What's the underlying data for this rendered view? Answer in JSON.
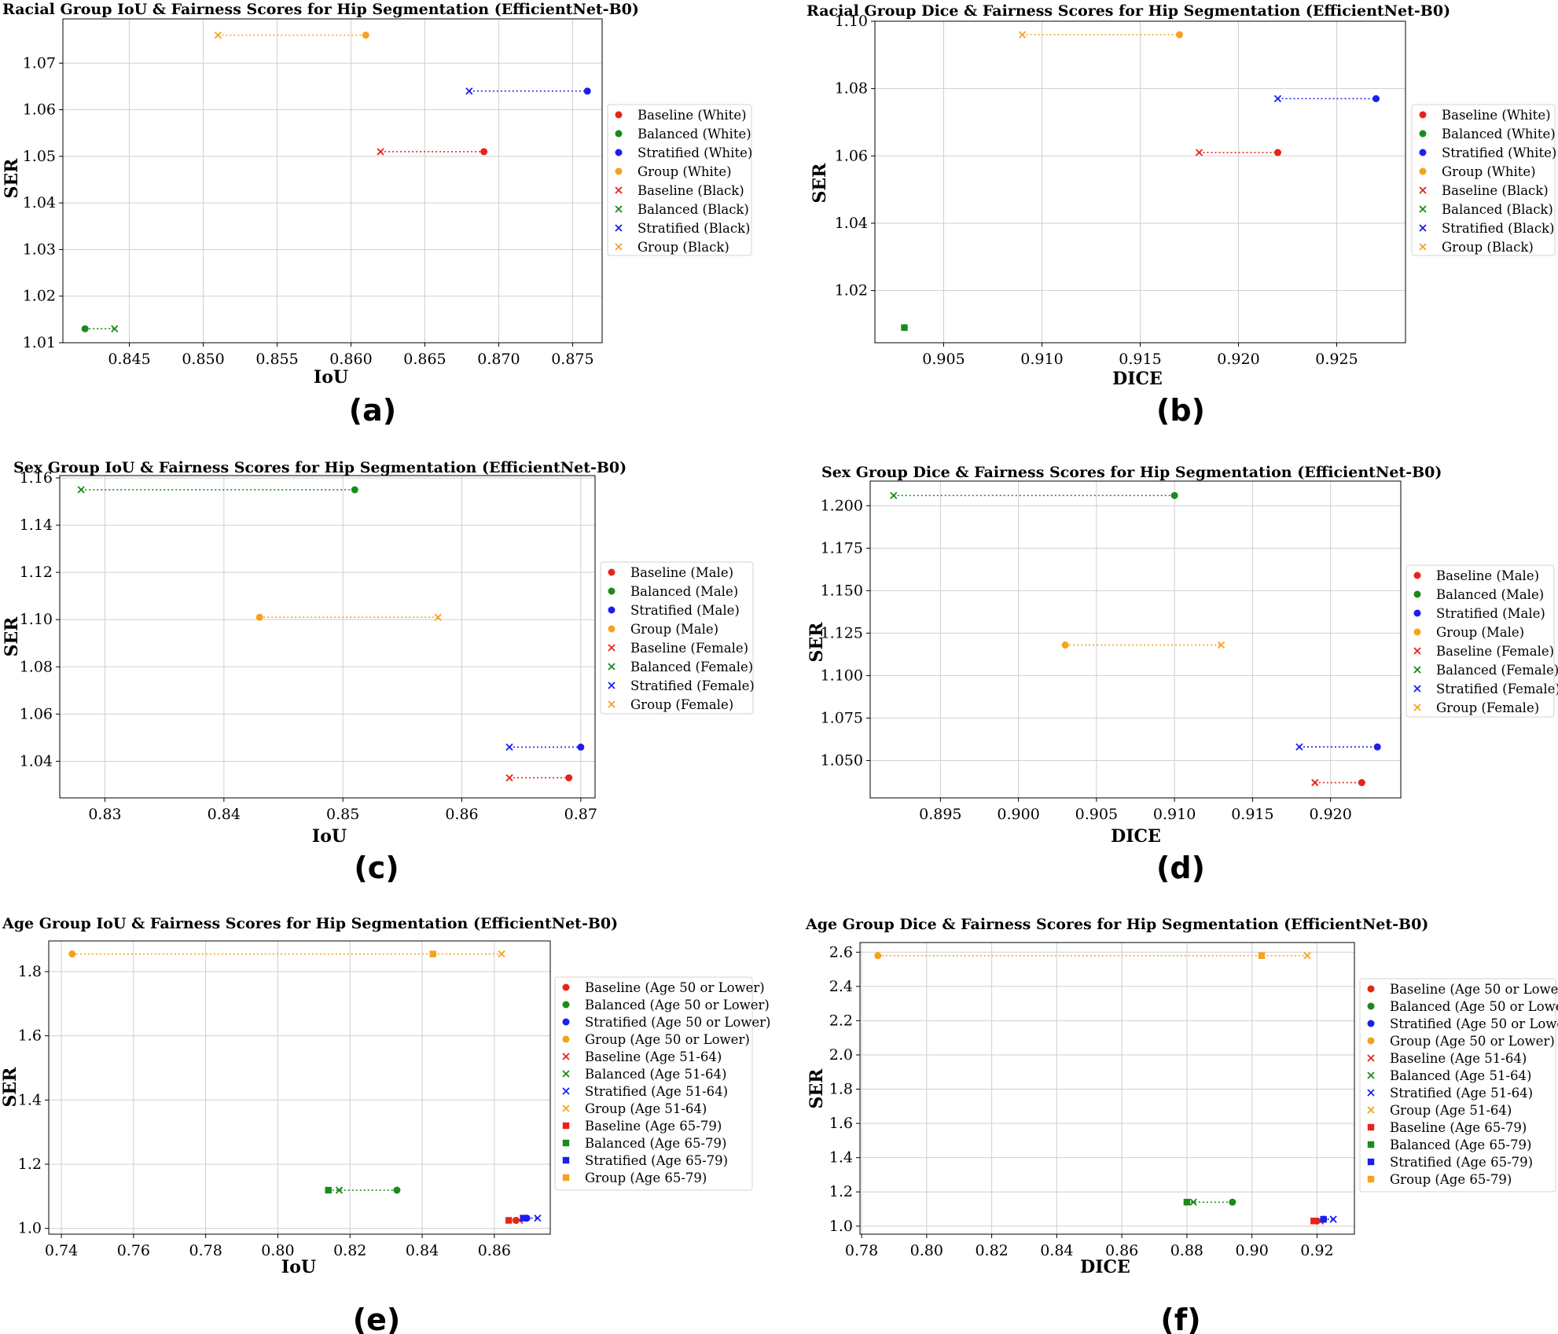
{
  "colors": {
    "Baseline": "#e8231b",
    "Balanced": "#1a8a1a",
    "Stratified": "#1b1ef0",
    "Group": "#f5a21b"
  },
  "chart_data": [
    {
      "type": "scatter",
      "panel_label": "(a)",
      "title": "Racial Group IoU & Fairness Scores for Hip Segmentation (EfficientNet-B0)",
      "xlabel": "IoU",
      "ylabel": "SER",
      "xlim": [
        0.8405,
        0.877
      ],
      "ylim": [
        1.01,
        1.0795
      ],
      "xticks": [
        0.845,
        0.85,
        0.855,
        0.86,
        0.865,
        0.87,
        0.875
      ],
      "yticks": [
        1.01,
        1.02,
        1.03,
        1.04,
        1.05,
        1.06,
        1.07
      ],
      "xdec": 3,
      "ydec": 2,
      "grid": true,
      "legend_position": "right",
      "groups": [
        {
          "name": "White",
          "marker": "circle"
        },
        {
          "name": "Black",
          "marker": "x"
        }
      ],
      "series": [
        {
          "method": "Baseline",
          "points": [
            {
              "x": 0.869,
              "y": 1.051
            },
            {
              "x": 0.862,
              "y": 1.051
            }
          ]
        },
        {
          "method": "Balanced",
          "points": [
            {
              "x": 0.842,
              "y": 1.013
            },
            {
              "x": 0.844,
              "y": 1.013
            }
          ]
        },
        {
          "method": "Stratified",
          "points": [
            {
              "x": 0.876,
              "y": 1.064
            },
            {
              "x": 0.868,
              "y": 1.064
            }
          ]
        },
        {
          "method": "Group",
          "points": [
            {
              "x": 0.861,
              "y": 1.076
            },
            {
              "x": 0.851,
              "y": 1.076
            }
          ]
        }
      ]
    },
    {
      "type": "scatter",
      "panel_label": "(b)",
      "title": "Racial Group Dice & Fairness Scores for Hip Segmentation (EfficientNet-B0)",
      "xlabel": "DICE",
      "ylabel": "SER",
      "xlim": [
        0.9015,
        0.9285
      ],
      "ylim": [
        1.0045,
        1.1
      ],
      "xticks": [
        0.905,
        0.91,
        0.915,
        0.92,
        0.925
      ],
      "yticks": [
        1.02,
        1.04,
        1.06,
        1.08,
        1.1
      ],
      "xdec": 3,
      "ydec": 2,
      "grid": true,
      "legend_position": "right",
      "groups": [
        {
          "name": "White",
          "marker": "circle"
        },
        {
          "name": "Black",
          "marker": "x"
        }
      ],
      "series": [
        {
          "method": "Baseline",
          "points": [
            {
              "x": 0.922,
              "y": 1.061
            },
            {
              "x": 0.918,
              "y": 1.061
            }
          ]
        },
        {
          "method": "Balanced",
          "points": [
            {
              "x": 0.903,
              "y": 1.009
            },
            {
              "x": 0.903,
              "y": 1.009
            }
          ]
        },
        {
          "method": "Stratified",
          "points": [
            {
              "x": 0.927,
              "y": 1.077
            },
            {
              "x": 0.922,
              "y": 1.077
            }
          ]
        },
        {
          "method": "Group",
          "points": [
            {
              "x": 0.917,
              "y": 1.096
            },
            {
              "x": 0.909,
              "y": 1.096
            }
          ]
        }
      ]
    },
    {
      "type": "scatter",
      "panel_label": "(c)",
      "title": "Sex Group IoU & Fairness Scores for Hip Segmentation (EfficientNet-B0)",
      "xlabel": "IoU",
      "ylabel": "SER",
      "xlim": [
        0.8262,
        0.8712
      ],
      "ylim": [
        1.0245,
        1.161
      ],
      "xticks": [
        0.83,
        0.84,
        0.85,
        0.86,
        0.87
      ],
      "yticks": [
        1.04,
        1.06,
        1.08,
        1.1,
        1.12,
        1.14,
        1.16
      ],
      "xdec": 2,
      "ydec": 2,
      "grid": true,
      "legend_position": "right",
      "groups": [
        {
          "name": "Male",
          "marker": "circle"
        },
        {
          "name": "Female",
          "marker": "x"
        }
      ],
      "series": [
        {
          "method": "Baseline",
          "points": [
            {
              "x": 0.869,
              "y": 1.033
            },
            {
              "x": 0.864,
              "y": 1.033
            }
          ]
        },
        {
          "method": "Balanced",
          "points": [
            {
              "x": 0.851,
              "y": 1.155
            },
            {
              "x": 0.828,
              "y": 1.155
            }
          ]
        },
        {
          "method": "Stratified",
          "points": [
            {
              "x": 0.87,
              "y": 1.046
            },
            {
              "x": 0.864,
              "y": 1.046
            }
          ]
        },
        {
          "method": "Group",
          "points": [
            {
              "x": 0.843,
              "y": 1.101
            },
            {
              "x": 0.858,
              "y": 1.101
            }
          ]
        }
      ]
    },
    {
      "type": "scatter",
      "panel_label": "(d)",
      "title": "Sex Group Dice & Fairness Scores for Hip Segmentation (EfficientNet-B0)",
      "xlabel": "DICE",
      "ylabel": "SER",
      "xlim": [
        0.8905,
        0.9245
      ],
      "ylim": [
        1.028,
        1.2145
      ],
      "xticks": [
        0.895,
        0.9,
        0.905,
        0.91,
        0.915,
        0.92
      ],
      "yticks": [
        1.05,
        1.075,
        1.1,
        1.125,
        1.15,
        1.175,
        1.2
      ],
      "xdec": 3,
      "ydec": 3,
      "grid": true,
      "legend_position": "right",
      "groups": [
        {
          "name": "Male",
          "marker": "circle"
        },
        {
          "name": "Female",
          "marker": "x"
        }
      ],
      "series": [
        {
          "method": "Baseline",
          "points": [
            {
              "x": 0.922,
              "y": 1.037
            },
            {
              "x": 0.919,
              "y": 1.037
            }
          ]
        },
        {
          "method": "Balanced",
          "points": [
            {
              "x": 0.91,
              "y": 1.206
            },
            {
              "x": 0.892,
              "y": 1.206
            }
          ]
        },
        {
          "method": "Stratified",
          "points": [
            {
              "x": 0.923,
              "y": 1.058
            },
            {
              "x": 0.918,
              "y": 1.058
            }
          ]
        },
        {
          "method": "Group",
          "points": [
            {
              "x": 0.903,
              "y": 1.118
            },
            {
              "x": 0.913,
              "y": 1.118
            }
          ]
        }
      ]
    },
    {
      "type": "scatter",
      "panel_label": "(e)",
      "title": "Age Group IoU & Fairness Scores for Hip Segmentation (EfficientNet-B0)",
      "xlabel": "IoU",
      "ylabel": "SER",
      "xlim": [
        0.7365,
        0.8755
      ],
      "ylim": [
        0.982,
        1.8955
      ],
      "xticks": [
        0.74,
        0.76,
        0.78,
        0.8,
        0.82,
        0.84,
        0.86
      ],
      "yticks": [
        1.0,
        1.2,
        1.4,
        1.6,
        1.8
      ],
      "xdec": 2,
      "ydec": 1,
      "grid": true,
      "legend_position": "right",
      "groups": [
        {
          "name": "Age 50 or Lower",
          "marker": "circle"
        },
        {
          "name": "Age 51-64",
          "marker": "x"
        },
        {
          "name": "Age 65-79",
          "marker": "square"
        }
      ],
      "series": [
        {
          "method": "Baseline",
          "points": [
            {
              "x": 0.866,
              "y": 1.025
            },
            {
              "x": 0.867,
              "y": 1.025
            },
            {
              "x": 0.864,
              "y": 1.025
            }
          ]
        },
        {
          "method": "Balanced",
          "points": [
            {
              "x": 0.833,
              "y": 1.119
            },
            {
              "x": 0.817,
              "y": 1.119
            },
            {
              "x": 0.814,
              "y": 1.119
            }
          ]
        },
        {
          "method": "Stratified",
          "points": [
            {
              "x": 0.869,
              "y": 1.032
            },
            {
              "x": 0.872,
              "y": 1.032
            },
            {
              "x": 0.868,
              "y": 1.032
            }
          ]
        },
        {
          "method": "Group",
          "points": [
            {
              "x": 0.743,
              "y": 1.855
            },
            {
              "x": 0.862,
              "y": 1.855
            },
            {
              "x": 0.843,
              "y": 1.855
            }
          ]
        }
      ]
    },
    {
      "type": "scatter",
      "panel_label": "(f)",
      "title": "Age Group Dice & Fairness Scores for Hip Segmentation (EfficientNet-B0)",
      "xlabel": "DICE",
      "ylabel": "SER",
      "xlim": [
        0.7795,
        0.9315
      ],
      "ylim": [
        0.953,
        2.6565
      ],
      "xticks": [
        0.78,
        0.8,
        0.82,
        0.84,
        0.86,
        0.88,
        0.9,
        0.92
      ],
      "yticks": [
        1.0,
        1.2,
        1.4,
        1.6,
        1.8,
        2.0,
        2.2,
        2.4,
        2.6
      ],
      "xdec": 2,
      "ydec": 1,
      "grid": true,
      "legend_position": "right",
      "groups": [
        {
          "name": "Age 50 or Lower",
          "marker": "circle"
        },
        {
          "name": "Age 51-64",
          "marker": "x"
        },
        {
          "name": "Age 65-79",
          "marker": "square"
        }
      ],
      "series": [
        {
          "method": "Baseline",
          "points": [
            {
              "x": 0.92,
              "y": 1.03
            },
            {
              "x": 0.921,
              "y": 1.03
            },
            {
              "x": 0.919,
              "y": 1.03
            }
          ]
        },
        {
          "method": "Balanced",
          "points": [
            {
              "x": 0.894,
              "y": 1.14
            },
            {
              "x": 0.882,
              "y": 1.14
            },
            {
              "x": 0.88,
              "y": 1.14
            }
          ]
        },
        {
          "method": "Stratified",
          "points": [
            {
              "x": 0.922,
              "y": 1.04
            },
            {
              "x": 0.925,
              "y": 1.04
            },
            {
              "x": 0.922,
              "y": 1.04
            }
          ]
        },
        {
          "method": "Group",
          "points": [
            {
              "x": 0.785,
              "y": 2.58
            },
            {
              "x": 0.917,
              "y": 2.58
            },
            {
              "x": 0.903,
              "y": 2.58
            }
          ]
        }
      ]
    }
  ]
}
